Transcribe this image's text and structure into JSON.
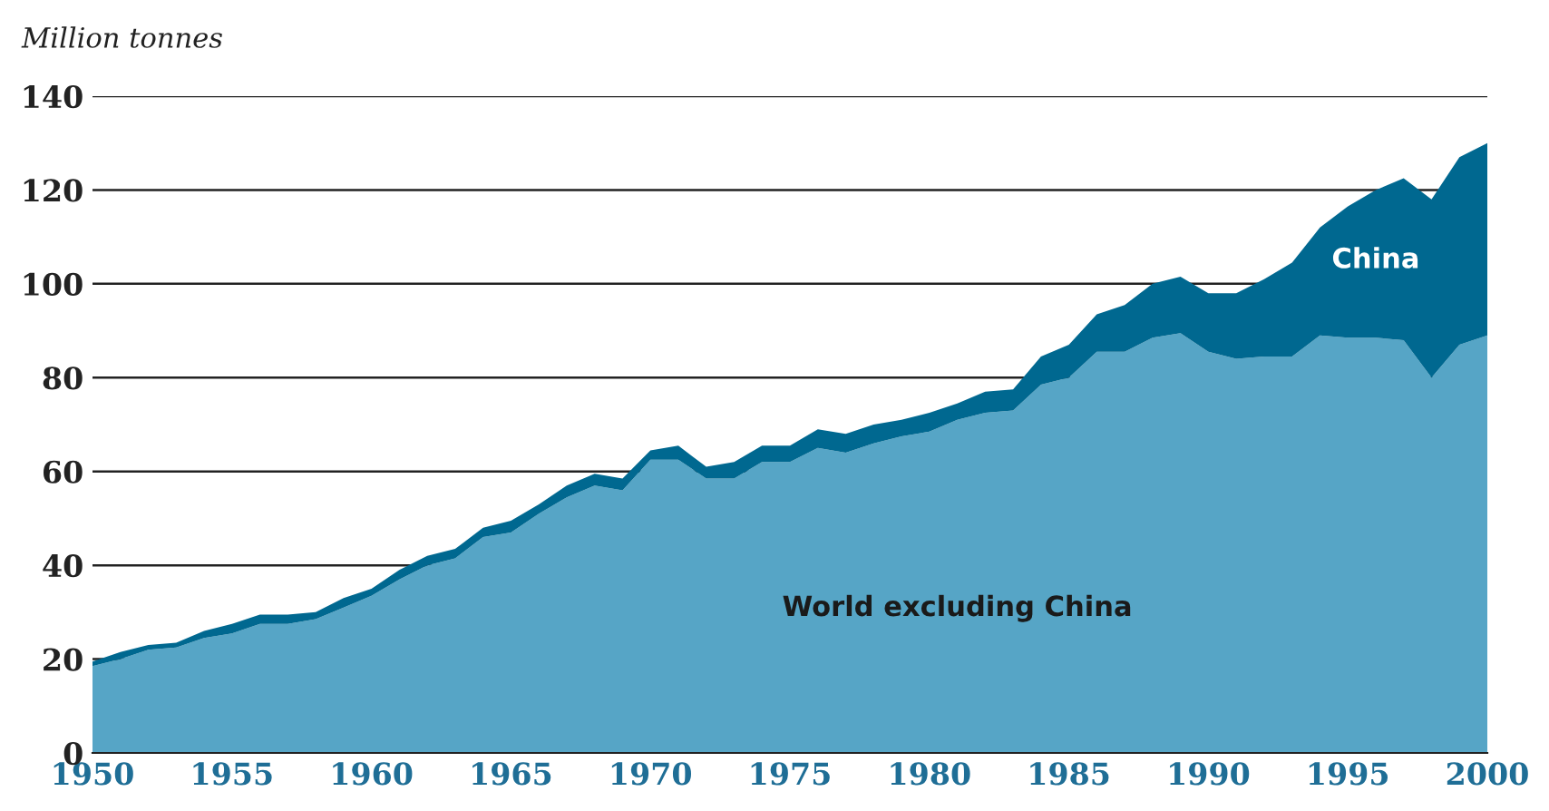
{
  "chart_data": {
    "type": "area",
    "stacked": true,
    "ylabel": "Million tonnes",
    "x": [
      1950,
      1951,
      1952,
      1953,
      1954,
      1955,
      1956,
      1957,
      1958,
      1959,
      1960,
      1961,
      1962,
      1963,
      1964,
      1965,
      1966,
      1967,
      1968,
      1969,
      1970,
      1971,
      1972,
      1973,
      1974,
      1975,
      1976,
      1977,
      1978,
      1979,
      1980,
      1981,
      1982,
      1983,
      1984,
      1985,
      1986,
      1987,
      1988,
      1989,
      1990,
      1991,
      1992,
      1993,
      1994,
      1995,
      1996,
      1997,
      1998,
      1999,
      2000
    ],
    "series": [
      {
        "name": "World excluding China",
        "color": "#56a5c6",
        "values": [
          18.5,
          20,
          22,
          22.5,
          24.5,
          25.5,
          27.5,
          27.5,
          28.5,
          31,
          33.5,
          37,
          40,
          41.5,
          46,
          47,
          51,
          54.5,
          57,
          56,
          62.5,
          62.5,
          58.5,
          58.5,
          62,
          62,
          65,
          64,
          66,
          67.5,
          68.5,
          71,
          72.5,
          73,
          78.5,
          80,
          85.5,
          85.5,
          88.5,
          89.5,
          85.5,
          84,
          84.5,
          84.5,
          89,
          88.5,
          88.5,
          88,
          80,
          87,
          89
        ]
      },
      {
        "name": "China",
        "color": "#006890",
        "values": [
          1,
          1.5,
          1,
          1,
          1.5,
          2,
          2,
          2,
          1.5,
          2,
          1.5,
          2,
          2,
          2,
          2,
          2.5,
          2,
          2.5,
          2.5,
          2.5,
          2,
          3,
          2.5,
          3.5,
          3.5,
          3.5,
          4,
          4,
          4,
          3.5,
          4,
          3.5,
          4.5,
          4.5,
          6,
          7,
          8,
          10,
          11.5,
          12,
          12.5,
          14,
          16.5,
          20,
          23,
          28,
          31.5,
          34.5,
          38,
          40,
          41
        ]
      }
    ],
    "xlim": [
      1950,
      2000
    ],
    "xticks": [
      1950,
      1955,
      1960,
      1965,
      1970,
      1975,
      1980,
      1985,
      1990,
      1995,
      2000
    ],
    "ylim": [
      0,
      140
    ],
    "yticks": [
      0,
      20,
      40,
      60,
      80,
      100,
      120,
      140
    ],
    "grid": "y",
    "legend": false
  }
}
